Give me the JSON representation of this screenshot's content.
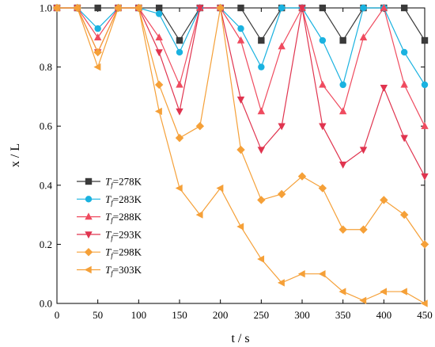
{
  "chart_data": {
    "type": "line",
    "xlabel": "t / s",
    "ylabel": "x / L",
    "xlim": [
      0,
      450
    ],
    "ylim": [
      0,
      1.0
    ],
    "xticks": [
      0,
      50,
      100,
      150,
      200,
      250,
      300,
      350,
      400,
      450
    ],
    "yticks": [
      0.0,
      0.2,
      0.4,
      0.6,
      0.8,
      1.0
    ],
    "xtick_labels": [
      "0",
      "50",
      "100",
      "150",
      "200",
      "250",
      "300",
      "350",
      "400",
      "450"
    ],
    "ytick_labels": [
      "0.0",
      "0.2",
      "0.4",
      "0.6",
      "0.8",
      "1.0"
    ],
    "grid": false,
    "legend_position": "left-lower-middle",
    "x": [
      0,
      25,
      50,
      75,
      100,
      125,
      150,
      175,
      200,
      225,
      250,
      275,
      300,
      325,
      350,
      375,
      400,
      425,
      450
    ],
    "series": [
      {
        "name": "T_f=278K",
        "legend_prefix": "T",
        "legend_sub": "f",
        "legend_suffix": "=278K",
        "color": "#3a3a3a",
        "marker": "square",
        "values": [
          1.0,
          1.0,
          1.0,
          1.0,
          1.0,
          1.0,
          0.89,
          1.0,
          1.0,
          1.0,
          0.89,
          1.0,
          1.0,
          1.0,
          0.89,
          1.0,
          1.0,
          1.0,
          0.89
        ]
      },
      {
        "name": "T_f=283K",
        "legend_prefix": "T",
        "legend_sub": "f",
        "legend_suffix": "=283K",
        "color": "#1ab2e0",
        "marker": "circle",
        "values": [
          1.0,
          1.0,
          0.93,
          1.0,
          1.0,
          0.98,
          0.85,
          1.0,
          1.0,
          0.93,
          0.8,
          1.0,
          1.0,
          0.89,
          0.74,
          1.0,
          1.0,
          0.85,
          0.74
        ]
      },
      {
        "name": "T_f=288K",
        "legend_prefix": "T",
        "legend_sub": "f",
        "legend_suffix": "=288K",
        "color": "#ef4b5f",
        "marker": "triangle-up",
        "values": [
          1.0,
          1.0,
          0.9,
          1.0,
          1.0,
          0.9,
          0.74,
          1.0,
          1.0,
          0.89,
          0.65,
          0.87,
          1.0,
          0.74,
          0.65,
          0.9,
          1.0,
          0.74,
          0.6
        ]
      },
      {
        "name": "T_f=293K",
        "legend_prefix": "T",
        "legend_sub": "f",
        "legend_suffix": "=293K",
        "color": "#e0344f",
        "marker": "triangle-down",
        "values": [
          1.0,
          1.0,
          0.85,
          1.0,
          1.0,
          0.85,
          0.65,
          1.0,
          1.0,
          0.69,
          0.52,
          0.6,
          1.0,
          0.6,
          0.47,
          0.52,
          0.73,
          0.56,
          0.43
        ]
      },
      {
        "name": "T_f=298K",
        "legend_prefix": "T",
        "legend_sub": "f",
        "legend_suffix": "=298K",
        "color": "#f5a038",
        "marker": "diamond",
        "values": [
          1.0,
          1.0,
          0.85,
          1.0,
          1.0,
          0.74,
          0.56,
          0.6,
          1.0,
          0.52,
          0.35,
          0.37,
          0.43,
          0.39,
          0.25,
          0.25,
          0.35,
          0.3,
          0.2
        ]
      },
      {
        "name": "T_f=303K",
        "legend_prefix": "T",
        "legend_sub": "f",
        "legend_suffix": "=303K",
        "color": "#f5a038",
        "marker": "triangle-left",
        "values": [
          1.0,
          1.0,
          0.8,
          1.0,
          1.0,
          0.65,
          0.39,
          0.3,
          0.39,
          0.26,
          0.15,
          0.07,
          0.1,
          0.1,
          0.04,
          0.01,
          0.04,
          0.04,
          0.0
        ]
      }
    ]
  }
}
